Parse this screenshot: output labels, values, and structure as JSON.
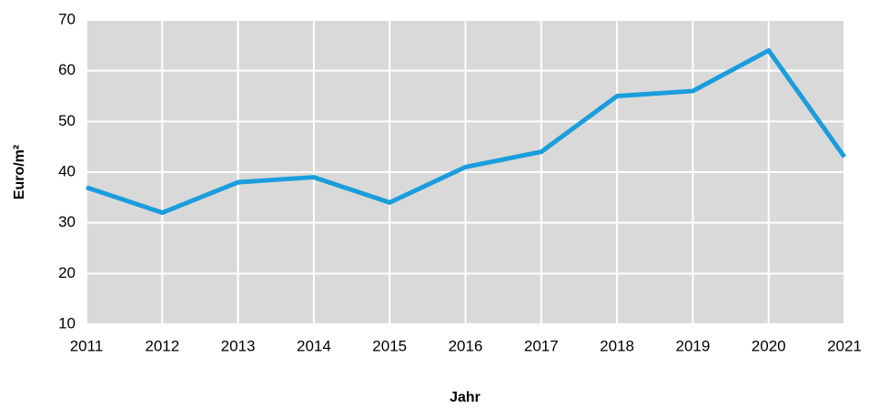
{
  "chart_data": {
    "type": "line",
    "x_label": "Jahr",
    "y_label": "Euro/m²",
    "x": [
      2011,
      2012,
      2013,
      2014,
      2015,
      2016,
      2017,
      2018,
      2019,
      2020,
      2021
    ],
    "series": [
      {
        "color": "#1a9ddc",
        "values": [
          37,
          32,
          38,
          39,
          34,
          41,
          44,
          55,
          56,
          64,
          43
        ]
      }
    ],
    "xlim": [
      2011,
      2021
    ],
    "xticks": [
      2011,
      2012,
      2013,
      2014,
      2015,
      2016,
      2017,
      2018,
      2019,
      2020,
      2021
    ],
    "ylim": [
      10,
      70
    ],
    "yticks": [
      10,
      20,
      30,
      40,
      50,
      60,
      70
    ],
    "grid": true,
    "background": "#d9d9d9"
  }
}
